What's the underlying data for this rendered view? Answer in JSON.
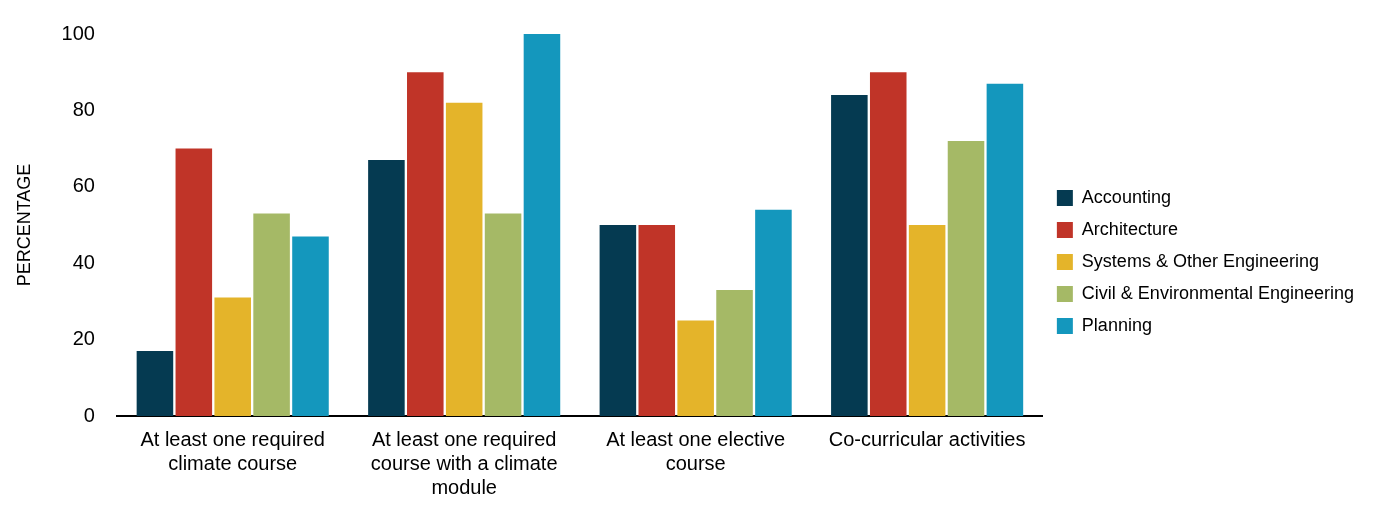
{
  "chart_data": {
    "type": "bar",
    "ylabel": "PERCENTAGE",
    "categories": [
      "At least one required climate course",
      "At least one required course with a climate module",
      "At least one elective course",
      "Co-curricular activities"
    ],
    "series": [
      {
        "name": "Accounting",
        "color": "#053a51",
        "values": [
          17,
          67,
          50,
          84
        ]
      },
      {
        "name": "Architecture",
        "color": "#c03428",
        "values": [
          70,
          90,
          50,
          90
        ]
      },
      {
        "name": "Systems & Other Engineering",
        "color": "#e4b42a",
        "values": [
          31,
          82,
          25,
          50
        ]
      },
      {
        "name": "Civil & Environmental Engineering",
        "color": "#a5b966",
        "values": [
          53,
          53,
          33,
          72
        ]
      },
      {
        "name": "Planning",
        "color": "#1497bd",
        "values": [
          47,
          100,
          54,
          87
        ]
      }
    ],
    "ylim": [
      0,
      100
    ],
    "yticks": [
      0,
      20,
      40,
      60,
      80,
      100
    ],
    "grid": false,
    "legend": "right"
  }
}
